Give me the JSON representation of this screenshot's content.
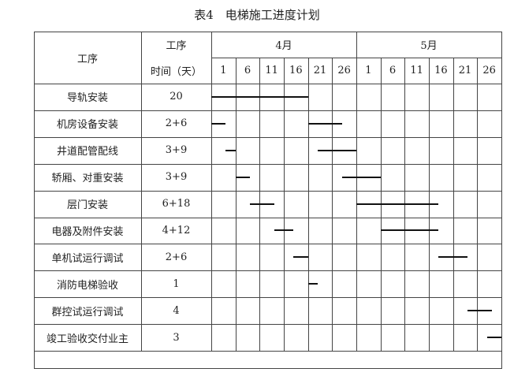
{
  "title": "表4　电梯施工进度计划",
  "header": {
    "process_label": "工序",
    "duration_label_line1": "工序",
    "duration_label_line2": "时间（天）",
    "months": [
      "4月",
      "5月"
    ],
    "days": [
      "1",
      "6",
      "11",
      "16",
      "21",
      "26",
      "1",
      "6",
      "11",
      "16",
      "21",
      "26"
    ]
  },
  "chart_data": {
    "type": "gantt",
    "title": "表4　电梯施工进度计划",
    "time_axis": {
      "months": [
        "4月",
        "5月"
      ],
      "day_ticks": [
        1,
        6,
        11,
        16,
        21,
        26
      ],
      "range": [
        "4/1",
        "5/31"
      ]
    },
    "grid": true,
    "tasks": [
      {
        "name": "导轨安装",
        "duration": "20",
        "segments": [
          [
            "4/1",
            "4/21"
          ]
        ]
      },
      {
        "name": "机房设备安装",
        "duration": "2+6",
        "segments": [
          [
            "4/1",
            "4/4"
          ],
          [
            "4/21",
            "4/28"
          ]
        ]
      },
      {
        "name": "井道配管配线",
        "duration": "3+9",
        "segments": [
          [
            "4/4",
            "4/6"
          ],
          [
            "4/23",
            "5/1"
          ]
        ]
      },
      {
        "name": "轿厢、对重安装",
        "duration": "3+9",
        "segments": [
          [
            "4/6",
            "4/9"
          ],
          [
            "4/28",
            "5/6"
          ]
        ]
      },
      {
        "name": "层门安装",
        "duration": "6+18",
        "segments": [
          [
            "4/9",
            "4/14"
          ],
          [
            "5/1",
            "5/18"
          ]
        ]
      },
      {
        "name": "电器及附件安装",
        "duration": "4+12",
        "segments": [
          [
            "4/14",
            "4/18"
          ],
          [
            "5/6",
            "5/18"
          ]
        ]
      },
      {
        "name": "单机试运行调试",
        "duration": "2+6",
        "segments": [
          [
            "4/18",
            "4/21"
          ],
          [
            "5/18",
            "5/24"
          ]
        ]
      },
      {
        "name": "消防电梯验收",
        "duration": "1",
        "segments": [
          [
            "4/21",
            "4/23"
          ]
        ]
      },
      {
        "name": "群控试运行调试",
        "duration": "4",
        "segments": [
          [
            "5/24",
            "5/29"
          ]
        ]
      },
      {
        "name": "竣工验收交付业主",
        "duration": "3",
        "segments": [
          [
            "5/28",
            "5/31"
          ]
        ]
      }
    ]
  }
}
